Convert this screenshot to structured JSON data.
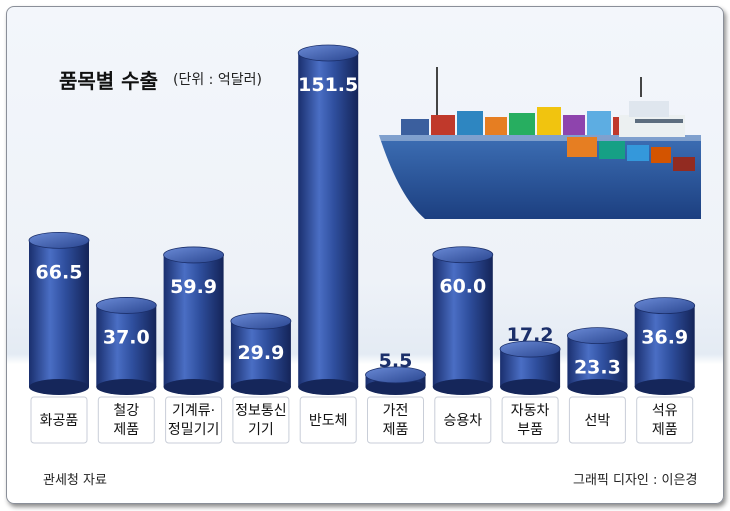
{
  "chart_data": {
    "type": "bar",
    "title": "품목별 수출",
    "unit": "(단위 : 억달러)",
    "categories": [
      "화공품",
      "철강\n제품",
      "기계류·\n정밀기기",
      "정보통신\n기기",
      "반도체",
      "가전\n제품",
      "승용차",
      "자동차\n부품",
      "선박",
      "석유\n제품"
    ],
    "values": [
      66.5,
      37.0,
      59.9,
      29.9,
      151.5,
      5.5,
      60.0,
      17.2,
      23.3,
      36.9
    ],
    "value_labels": [
      "66.5",
      "37.0",
      "59.9",
      "29.9",
      "151.5",
      "5.5",
      "60.0",
      "17.2",
      "23.3",
      "36.9"
    ],
    "ylim": [
      0,
      151.5
    ],
    "xlabel": "",
    "ylabel": "",
    "grid": false,
    "bar_color": "#2f4f9e"
  },
  "footer": {
    "source": "관세청 자료",
    "credit": "그래픽 디자인 : 이은경"
  }
}
